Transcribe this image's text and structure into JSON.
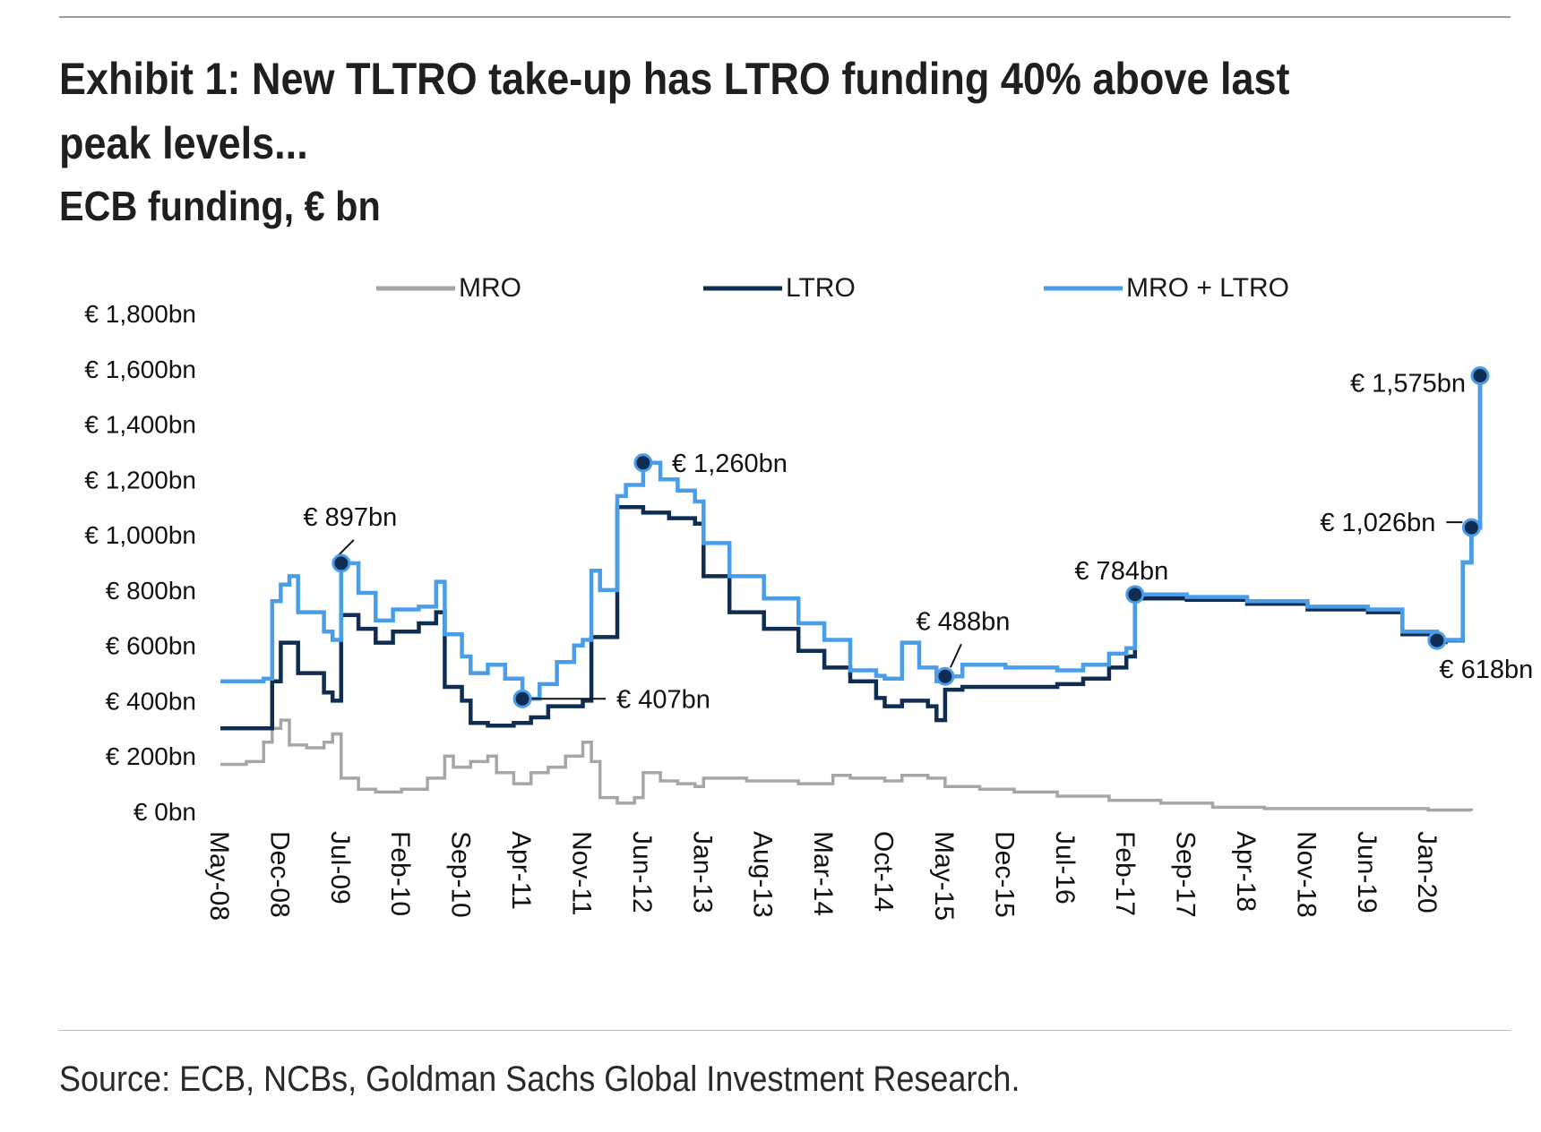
{
  "header": {
    "title": "Exhibit 1: New TLTRO take-up has LTRO funding 40% above last peak levels...",
    "subtitle": "ECB funding, € bn"
  },
  "footer": {
    "source": "Source: ECB, NCBs, Goldman Sachs Global Investment Research."
  },
  "colors": {
    "MRO": "#a6a6a6",
    "LTRO": "#0f2d52",
    "MRO + LTRO": "#4a9de8",
    "marker": "#0f2d52"
  },
  "chart_data": {
    "type": "line",
    "title": "",
    "xlabel": "",
    "ylabel": "",
    "ylim": [
      0,
      1800
    ],
    "yticks": [
      0,
      200,
      400,
      600,
      800,
      1000,
      1200,
      1400,
      1600,
      1800
    ],
    "ytick_labels": [
      "€ 0bn",
      "€ 200bn",
      "€ 400bn",
      "€ 600bn",
      "€ 800bn",
      "€ 1,000bn",
      "€ 1,200bn",
      "€ 1,400bn",
      "€ 1,600bn",
      "€ 1,800bn"
    ],
    "xticks": [
      "2008-05",
      "2008-12",
      "2009-07",
      "2010-02",
      "2010-09",
      "2011-04",
      "2011-11",
      "2012-06",
      "2013-01",
      "2013-08",
      "2014-03",
      "2014-10",
      "2015-05",
      "2015-12",
      "2016-07",
      "2017-02",
      "2017-09",
      "2018-04",
      "2018-11",
      "2019-06",
      "2020-01"
    ],
    "xtick_labels": [
      "May-08",
      "Dec-08",
      "Jul-09",
      "Feb-10",
      "Sep-10",
      "Apr-11",
      "Nov-11",
      "Jun-12",
      "Jan-13",
      "Aug-13",
      "Mar-14",
      "Oct-14",
      "May-15",
      "Dec-15",
      "Jul-16",
      "Feb-17",
      "Sep-17",
      "Apr-18",
      "Nov-18",
      "Jun-19",
      "Jan-20"
    ],
    "legend": {
      "placement": "top",
      "entries": [
        "MRO",
        "LTRO",
        "MRO + LTRO"
      ]
    },
    "grid": false,
    "series": [
      {
        "name": "MRO",
        "points": [
          [
            "2008-05",
            170
          ],
          [
            "2008-08",
            180
          ],
          [
            "2008-10",
            250
          ],
          [
            "2008-11",
            300
          ],
          [
            "2008-12",
            330
          ],
          [
            "2009-01",
            240
          ],
          [
            "2009-03",
            230
          ],
          [
            "2009-05",
            250
          ],
          [
            "2009-06",
            280
          ],
          [
            "2009-07",
            120
          ],
          [
            "2009-09",
            80
          ],
          [
            "2009-11",
            70
          ],
          [
            "2010-02",
            80
          ],
          [
            "2010-05",
            120
          ],
          [
            "2010-07",
            200
          ],
          [
            "2010-08",
            160
          ],
          [
            "2010-10",
            180
          ],
          [
            "2010-12",
            200
          ],
          [
            "2011-01",
            140
          ],
          [
            "2011-03",
            100
          ],
          [
            "2011-05",
            140
          ],
          [
            "2011-07",
            160
          ],
          [
            "2011-09",
            200
          ],
          [
            "2011-11",
            250
          ],
          [
            "2011-12",
            180
          ],
          [
            "2012-01",
            50
          ],
          [
            "2012-03",
            30
          ],
          [
            "2012-05",
            50
          ],
          [
            "2012-06",
            140
          ],
          [
            "2012-08",
            110
          ],
          [
            "2012-10",
            100
          ],
          [
            "2012-12",
            90
          ],
          [
            "2013-01",
            120
          ],
          [
            "2013-06",
            110
          ],
          [
            "2013-12",
            100
          ],
          [
            "2014-04",
            130
          ],
          [
            "2014-06",
            120
          ],
          [
            "2014-10",
            110
          ],
          [
            "2014-12",
            130
          ],
          [
            "2015-03",
            120
          ],
          [
            "2015-05",
            90
          ],
          [
            "2015-09",
            80
          ],
          [
            "2016-01",
            70
          ],
          [
            "2016-06",
            55
          ],
          [
            "2016-12",
            40
          ],
          [
            "2017-06",
            30
          ],
          [
            "2017-12",
            15
          ],
          [
            "2018-06",
            10
          ],
          [
            "2019-01",
            10
          ],
          [
            "2019-06",
            10
          ],
          [
            "2020-01",
            5
          ],
          [
            "2020-06",
            2
          ]
        ]
      },
      {
        "name": "LTRO",
        "points": [
          [
            "2008-05",
            300
          ],
          [
            "2008-10",
            300
          ],
          [
            "2008-11",
            470
          ],
          [
            "2008-12",
            610
          ],
          [
            "2009-02",
            500
          ],
          [
            "2009-05",
            430
          ],
          [
            "2009-06",
            400
          ],
          [
            "2009-07",
            710
          ],
          [
            "2009-09",
            660
          ],
          [
            "2009-11",
            610
          ],
          [
            "2010-01",
            650
          ],
          [
            "2010-04",
            680
          ],
          [
            "2010-06",
            720
          ],
          [
            "2010-07",
            450
          ],
          [
            "2010-09",
            400
          ],
          [
            "2010-10",
            320
          ],
          [
            "2010-12",
            310
          ],
          [
            "2011-03",
            320
          ],
          [
            "2011-05",
            340
          ],
          [
            "2011-07",
            380
          ],
          [
            "2011-09",
            380
          ],
          [
            "2011-11",
            400
          ],
          [
            "2011-12",
            630
          ],
          [
            "2012-03",
            1100
          ],
          [
            "2012-06",
            1080
          ],
          [
            "2012-09",
            1060
          ],
          [
            "2012-12",
            1040
          ],
          [
            "2013-01",
            850
          ],
          [
            "2013-04",
            720
          ],
          [
            "2013-08",
            660
          ],
          [
            "2013-12",
            580
          ],
          [
            "2014-03",
            520
          ],
          [
            "2014-06",
            470
          ],
          [
            "2014-09",
            410
          ],
          [
            "2014-10",
            380
          ],
          [
            "2014-12",
            400
          ],
          [
            "2015-03",
            380
          ],
          [
            "2015-04",
            330
          ],
          [
            "2015-05",
            440
          ],
          [
            "2015-07",
            450
          ],
          [
            "2015-12",
            450
          ],
          [
            "2016-06",
            460
          ],
          [
            "2016-09",
            480
          ],
          [
            "2016-12",
            520
          ],
          [
            "2017-02",
            560
          ],
          [
            "2017-03",
            770
          ],
          [
            "2017-09",
            765
          ],
          [
            "2018-04",
            750
          ],
          [
            "2018-11",
            730
          ],
          [
            "2019-06",
            720
          ],
          [
            "2019-10",
            640
          ],
          [
            "2020-02",
            612
          ],
          [
            "2020-03",
            618
          ],
          [
            "2020-05",
            900
          ],
          [
            "2020-06",
            1026
          ],
          [
            "2020-07",
            1575
          ]
        ]
      },
      {
        "name": "MRO + LTRO",
        "points": [
          [
            "2008-05",
            470
          ],
          [
            "2008-10",
            480
          ],
          [
            "2008-11",
            760
          ],
          [
            "2008-12",
            820
          ],
          [
            "2009-01",
            850
          ],
          [
            "2009-02",
            720
          ],
          [
            "2009-05",
            650
          ],
          [
            "2009-06",
            620
          ],
          [
            "2009-07",
            897
          ],
          [
            "2009-09",
            790
          ],
          [
            "2009-11",
            690
          ],
          [
            "2010-01",
            730
          ],
          [
            "2010-04",
            740
          ],
          [
            "2010-06",
            830
          ],
          [
            "2010-07",
            640
          ],
          [
            "2010-09",
            560
          ],
          [
            "2010-10",
            500
          ],
          [
            "2010-12",
            530
          ],
          [
            "2011-02",
            480
          ],
          [
            "2011-04",
            407
          ],
          [
            "2011-06",
            460
          ],
          [
            "2011-08",
            540
          ],
          [
            "2011-10",
            600
          ],
          [
            "2011-11",
            620
          ],
          [
            "2011-12",
            870
          ],
          [
            "2012-01",
            800
          ],
          [
            "2012-03",
            1140
          ],
          [
            "2012-04",
            1180
          ],
          [
            "2012-06",
            1260
          ],
          [
            "2012-08",
            1200
          ],
          [
            "2012-10",
            1160
          ],
          [
            "2012-12",
            1120
          ],
          [
            "2013-01",
            970
          ],
          [
            "2013-04",
            850
          ],
          [
            "2013-08",
            770
          ],
          [
            "2013-12",
            680
          ],
          [
            "2014-03",
            620
          ],
          [
            "2014-06",
            510
          ],
          [
            "2014-09",
            490
          ],
          [
            "2014-10",
            480
          ],
          [
            "2014-12",
            610
          ],
          [
            "2015-02",
            520
          ],
          [
            "2015-04",
            470
          ],
          [
            "2015-05",
            488
          ],
          [
            "2015-07",
            530
          ],
          [
            "2015-12",
            520
          ],
          [
            "2016-06",
            510
          ],
          [
            "2016-09",
            530
          ],
          [
            "2016-12",
            570
          ],
          [
            "2017-02",
            590
          ],
          [
            "2017-03",
            784
          ],
          [
            "2017-09",
            775
          ],
          [
            "2018-04",
            760
          ],
          [
            "2018-11",
            740
          ],
          [
            "2019-06",
            730
          ],
          [
            "2019-10",
            650
          ],
          [
            "2020-02",
            618
          ],
          [
            "2020-03",
            620
          ],
          [
            "2020-05",
            900
          ],
          [
            "2020-06",
            1026
          ],
          [
            "2020-07",
            1575
          ]
        ]
      }
    ],
    "annotations": [
      {
        "label": "€ 897bn",
        "x": "2009-07",
        "y": 897
      },
      {
        "label": "€ 407bn",
        "x": "2011-04",
        "y": 407
      },
      {
        "label": "€ 1,260bn",
        "x": "2012-06",
        "y": 1260
      },
      {
        "label": "€ 488bn",
        "x": "2015-05",
        "y": 488
      },
      {
        "label": "€ 784bn",
        "x": "2017-03",
        "y": 784
      },
      {
        "label": "€ 618bn",
        "x": "2020-02",
        "y": 618
      },
      {
        "label": "€ 1,026bn",
        "x": "2020-06",
        "y": 1026
      },
      {
        "label": "€ 1,575bn",
        "x": "2020-07",
        "y": 1575
      }
    ]
  }
}
